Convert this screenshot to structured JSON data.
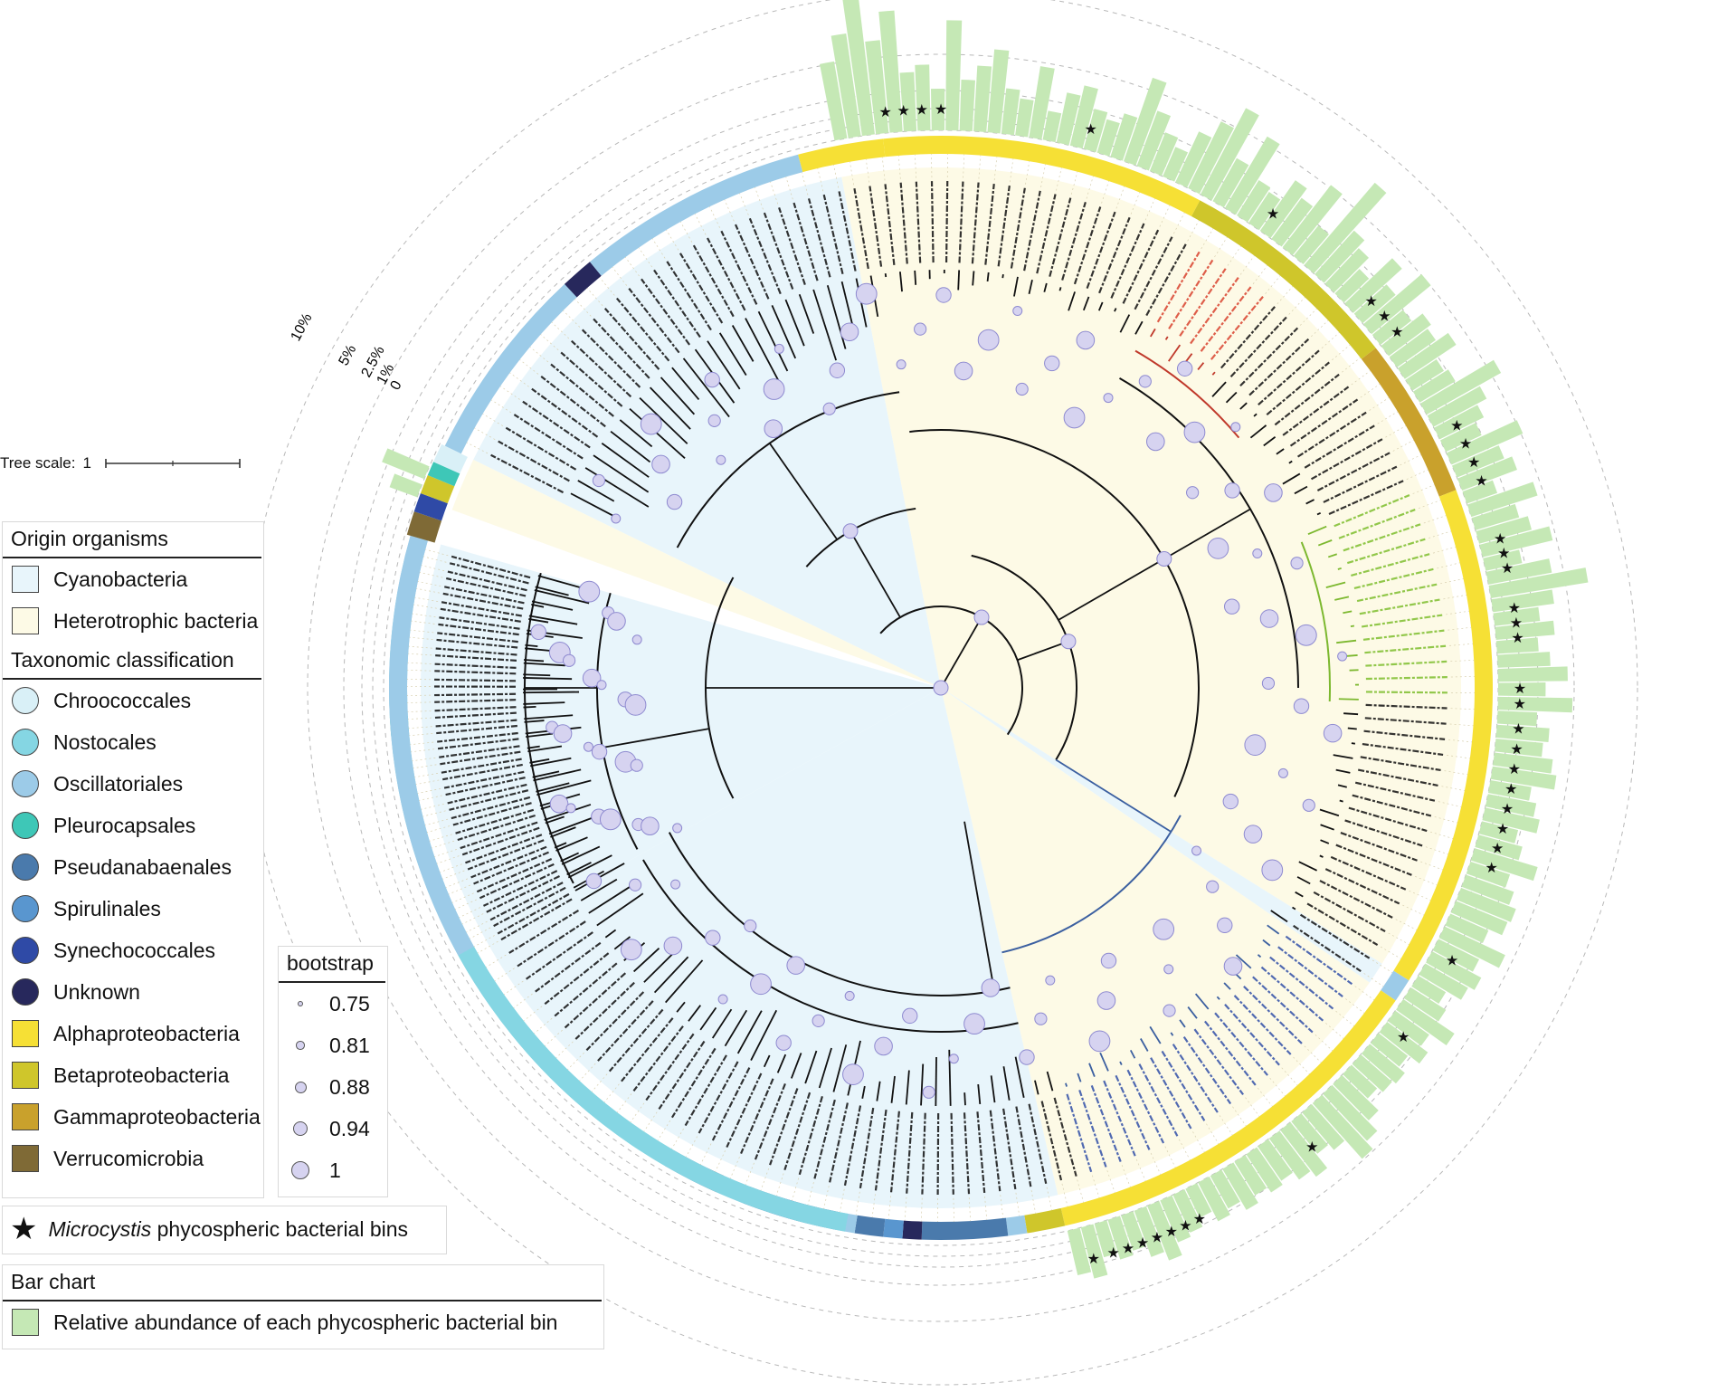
{
  "colors": {
    "cyanobacteria_bg": "#e8f5fb",
    "heterotrophic_bg": "#fdfae6",
    "chroococcales": "#d9f0f7",
    "nostocales": "#85d6e3",
    "oscillatoriales": "#9ccbe8",
    "pleurocapsales": "#3ec7b7",
    "pseudanabaenales": "#4a7aac",
    "spirulinales": "#5996cf",
    "synechococcales": "#2f4aa6",
    "unknown": "#27285c",
    "alphaproteobacteria": "#f6e035",
    "betaproteobacteria": "#cfc62b",
    "gammaproteobacteria": "#c9a12c",
    "verrucomicrobia": "#7f6a36",
    "bar_fill": "#c5e8b5",
    "bootstrap_fill": "#d6d3f0",
    "branch_black": "#111111",
    "branch_red": "#c0392b",
    "branch_green": "#7cb82f",
    "branch_blue": "#3b5fa0",
    "label_red": "#d9432f",
    "label_green": "#7fbf2f",
    "label_blue": "#3250a8"
  },
  "tree_scale": {
    "label": "Tree scale:",
    "value": "1"
  },
  "bar_scale_labels": [
    "10%",
    "5%",
    "2.5%",
    "1%",
    "0"
  ],
  "legend": {
    "origin": {
      "title": "Origin organisms",
      "items": [
        {
          "label": "Cyanobacteria",
          "color_key": "cyanobacteria_bg"
        },
        {
          "label": "Heterotrophic bacteria",
          "color_key": "heterotrophic_bg"
        }
      ]
    },
    "taxonomy": {
      "title": "Taxonomic classification",
      "items": [
        {
          "label": "Chroococcales",
          "color_key": "chroococcales",
          "shape": "circle"
        },
        {
          "label": "Nostocales",
          "color_key": "nostocales",
          "shape": "circle"
        },
        {
          "label": "Oscillatoriales",
          "color_key": "oscillatoriales",
          "shape": "circle"
        },
        {
          "label": "Pleurocapsales",
          "color_key": "pleurocapsales",
          "shape": "circle"
        },
        {
          "label": "Pseudanabaenales",
          "color_key": "pseudanabaenales",
          "shape": "circle"
        },
        {
          "label": "Spirulinales",
          "color_key": "spirulinales",
          "shape": "circle"
        },
        {
          "label": "Synechococcales",
          "color_key": "synechococcales",
          "shape": "circle"
        },
        {
          "label": "Unknown",
          "color_key": "unknown",
          "shape": "circle"
        },
        {
          "label": "Alphaproteobacteria",
          "color_key": "alphaproteobacteria",
          "shape": "square"
        },
        {
          "label": "Betaproteobacteria",
          "color_key": "betaproteobacteria",
          "shape": "square"
        },
        {
          "label": "Gammaproteobacteria",
          "color_key": "gammaproteobacteria",
          "shape": "square"
        },
        {
          "label": "Verrucomicrobia",
          "color_key": "verrucomicrobia",
          "shape": "square"
        }
      ]
    },
    "bootstrap": {
      "title": "bootstrap",
      "items": [
        {
          "label": "0.75",
          "value": 0.75
        },
        {
          "label": "0.81",
          "value": 0.81
        },
        {
          "label": "0.88",
          "value": 0.88
        },
        {
          "label": "0.94",
          "value": 0.94
        },
        {
          "label": "1",
          "value": 1
        }
      ]
    },
    "star": {
      "italic": "Microcystis",
      "rest": " phycospheric bacterial bins"
    },
    "bar_chart": {
      "title": "Bar chart",
      "label": "Relative abundance of each phycospheric bacterial bin"
    }
  },
  "chart_data": {
    "type": "bar",
    "layout": "circular-phylogenetic-tree",
    "heterotroph_sequence": [
      "gamma",
      "gamma",
      "gamma",
      "gamma",
      "gamma",
      "gamma",
      "gamma",
      "gamma",
      "gamma",
      "gamma",
      "beta",
      "beta",
      "beta",
      "beta",
      "beta",
      "beta",
      "alpha",
      "alpha",
      "alpha",
      "alpha",
      "alpha",
      "alpha",
      "alpha",
      "alpha",
      "alpha",
      "alpha",
      "alpha",
      "alpha",
      "alpha",
      "alpha",
      "alpha",
      "alpha",
      "alpha",
      "alpha",
      "alpha",
      "alpha",
      "alpha",
      "alpha",
      "alpha",
      "alpha",
      "alpha",
      "alpha",
      "alpha",
      "alpha",
      "alpha",
      "alpha",
      "alpha",
      "alpha",
      "alpha",
      "alpha",
      "alpha",
      "alpha",
      "alpha",
      "alpha",
      "alpha",
      "alpha",
      "alpha",
      "alpha",
      "alpha",
      "alpha",
      "alpha",
      "alpha",
      "alpha",
      "alpha",
      "alpha",
      "alpha",
      "alpha",
      "alpha",
      "alpha",
      "alpha",
      "alpha",
      "alpha",
      "alpha",
      "alpha",
      "alpha",
      "alpha",
      "alpha",
      "alpha",
      "alpha",
      "alpha",
      "alpha",
      "alpha",
      "alpha",
      "alpha",
      "alpha",
      "alpha",
      "alpha",
      "alpha",
      "alpha",
      "alpha",
      "alpha",
      "alpha",
      "alpha",
      "alpha",
      "alpha",
      "alpha",
      "alpha",
      "alpha",
      "alpha",
      "alpha",
      "alpha",
      "alpha",
      "alpha",
      "alpha",
      "alpha",
      "alpha",
      "alpha",
      "alpha",
      "alpha",
      "alpha",
      "alpha",
      "alpha",
      "alpha",
      "alpha",
      "alpha",
      "alpha",
      "alpha",
      "alpha",
      "alpha",
      "alpha",
      "alpha",
      "alpha",
      "alpha",
      "alpha",
      "alpha",
      "alpha",
      "alpha",
      "alpha",
      "alpha",
      "alpha",
      "alpha",
      "alpha",
      "alpha",
      "alpha",
      "alpha",
      "alpha"
    ],
    "abundance_percent": [
      3.5,
      6.2,
      12.0,
      5.0,
      8.5,
      2.0,
      2.5,
      1.0,
      7.0,
      1.5,
      2.5,
      4.0,
      1.2,
      0.8,
      3.0,
      0.5,
      1.5,
      2.2,
      1.0,
      0.7,
      1.2,
      4.5,
      2.0,
      1.0,
      0.6,
      1.8,
      3.2,
      5.5,
      1.4,
      4.0,
      1.0,
      0.8,
      2.2,
      1.5,
      3.6,
      0.9,
      6.8,
      2.0,
      1.4,
      0.7,
      2.5,
      1.1,
      3.4,
      0.9,
      1.6,
      1.3,
      2.2,
      0.8,
      1.0,
      4.2,
      2.1,
      1.4,
      0.9,
      3.5,
      1.5,
      2.0,
      0.6,
      2.8,
      1.2,
      1.7,
      3.0,
      0.8,
      2.4,
      5.6,
      2.2,
      1.2,
      2.0,
      1.0,
      1.6,
      2.8,
      1.3,
      3.2,
      0.9,
      1.6,
      1.3,
      2.0,
      2.4,
      1.0,
      1.4,
      1.8,
      0.8,
      1.2,
      2.5,
      1.0,
      1.5,
      2.0,
      1.8,
      1.0,
      2.6,
      1.2,
      1.8,
      1.4,
      0.6,
      1.0,
      2.2,
      1.0,
      1.5,
      0.8,
      1.2,
      1.0,
      0.7,
      1.5,
      2.4,
      3.2,
      1.4,
      1.0,
      2.0,
      1.5,
      1.0,
      1.2,
      0.9,
      1.3,
      0.8,
      1.1,
      0.6,
      1.0,
      1.2,
      2.0,
      1.4,
      0.8,
      1.0,
      0.7,
      1.6,
      1.2
    ],
    "bar_scale_ticks_percent": [
      0,
      1,
      2.5,
      5,
      10
    ],
    "notes": ""
  }
}
